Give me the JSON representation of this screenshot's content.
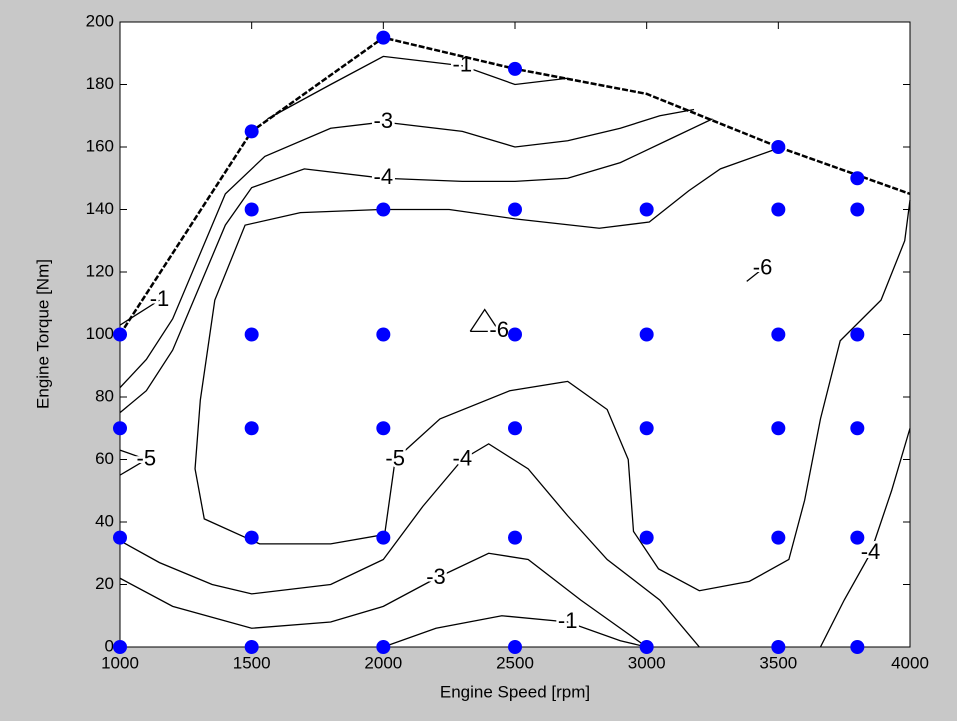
{
  "chart_data": {
    "type": "contour",
    "xlabel": "Engine Speed [rpm]",
    "ylabel": "Engine Torque [Nm]",
    "xlim": [
      1000,
      4000
    ],
    "ylim": [
      0,
      200
    ],
    "xticks": [
      1000,
      1500,
      2000,
      2500,
      3000,
      3500,
      4000
    ],
    "yticks": [
      0,
      20,
      40,
      60,
      80,
      100,
      120,
      140,
      160,
      180,
      200
    ],
    "line_color": "#000000",
    "contours": [
      {
        "level": -1,
        "x": [
          1560,
          1800,
          2000,
          2300,
          2500,
          2700,
          null,
          1000,
          1150,
          null,
          2000,
          2200,
          2450,
          2700,
          2900,
          3000
        ],
        "y": [
          169,
          180,
          189,
          186,
          180,
          182,
          null,
          103,
          111,
          null,
          0,
          6,
          10,
          8,
          2,
          0
        ]
      },
      {
        "level": -3,
        "x": [
          1000,
          1100,
          1200,
          1300,
          1400,
          1550,
          1800,
          2000,
          2300,
          2500,
          2700,
          2900,
          3050,
          3180,
          null,
          1000,
          1200,
          1500,
          1800,
          2000,
          2200,
          2400,
          2550,
          2750,
          2900,
          3000
        ],
        "y": [
          83,
          92,
          105,
          125,
          145,
          157,
          166,
          168,
          165,
          160,
          162,
          166,
          170,
          172,
          null,
          22,
          13,
          6,
          8,
          13,
          22,
          30,
          28,
          15,
          6,
          0
        ]
      },
      {
        "level": -4,
        "x": [
          1000,
          1100,
          1200,
          1300,
          1400,
          1500,
          1700,
          2000,
          2300,
          2500,
          2700,
          2900,
          3100,
          3250,
          null,
          1000,
          1150,
          1350,
          1500,
          1800,
          2000,
          2150,
          2300,
          2400,
          2550,
          2700,
          2850,
          3050,
          3200,
          null,
          3660,
          3750,
          3850,
          3930,
          4000
        ],
        "y": [
          75,
          82,
          95,
          115,
          135,
          147,
          153,
          150,
          149,
          149,
          150,
          155,
          163,
          169,
          null,
          34,
          27,
          20,
          17,
          20,
          28,
          45,
          60,
          65,
          57,
          42,
          28,
          15,
          0,
          null,
          0,
          15,
          30,
          50,
          70
        ]
      },
      {
        "level": -5,
        "x": [
          3480,
          3280,
          3160,
          3010,
          2820,
          2500,
          2250,
          1990,
          1685,
          1475,
          1360,
          1305,
          1285,
          1320,
          1530,
          1800,
          2005,
          2045,
          2215,
          2480,
          2700,
          2850,
          2930,
          2950,
          3045,
          3200,
          3390,
          3540,
          3600,
          3660,
          3735,
          3890,
          3980,
          4000,
          null,
          1000,
          1100,
          1000
        ],
        "y": [
          159,
          153,
          146,
          136,
          134,
          137,
          140,
          140,
          139,
          135,
          111,
          79,
          57,
          41,
          33,
          33,
          36,
          60,
          73,
          82,
          85,
          76,
          60,
          37,
          25,
          18,
          21,
          28,
          47,
          73,
          98,
          111,
          130,
          143,
          null,
          63,
          60,
          55
        ]
      },
      {
        "level": -6,
        "x": [
          2330,
          2385,
          2440,
          2330,
          null,
          3380,
          3440
        ],
        "y": [
          101,
          108,
          101,
          101,
          null,
          117,
          121
        ]
      }
    ],
    "points": {
      "color": "#0000ff",
      "x": [
        1000,
        1500,
        2000,
        2500,
        3000,
        3500,
        3800,
        1000,
        1500,
        2000,
        2500,
        3000,
        3500,
        3800,
        1000,
        1500,
        2000,
        2500,
        3000,
        3500,
        3800,
        1000,
        1500,
        2000,
        2500,
        3000,
        3500,
        3800,
        1500,
        2000,
        2500,
        3000,
        3500,
        3800,
        1500,
        2000,
        2500,
        3500,
        3800
      ],
      "y": [
        0,
        0,
        0,
        0,
        0,
        0,
        0,
        35,
        35,
        35,
        35,
        35,
        35,
        35,
        70,
        70,
        70,
        70,
        70,
        70,
        70,
        100,
        100,
        100,
        100,
        100,
        100,
        100,
        140,
        140,
        140,
        140,
        140,
        140,
        165,
        195,
        185,
        160,
        150
      ]
    },
    "boundary": {
      "color": "#000000",
      "x": [
        1000,
        1500,
        2000,
        2500,
        3000,
        3500,
        4000
      ],
      "y": [
        100,
        165,
        195,
        185,
        177,
        160,
        145
      ]
    }
  }
}
